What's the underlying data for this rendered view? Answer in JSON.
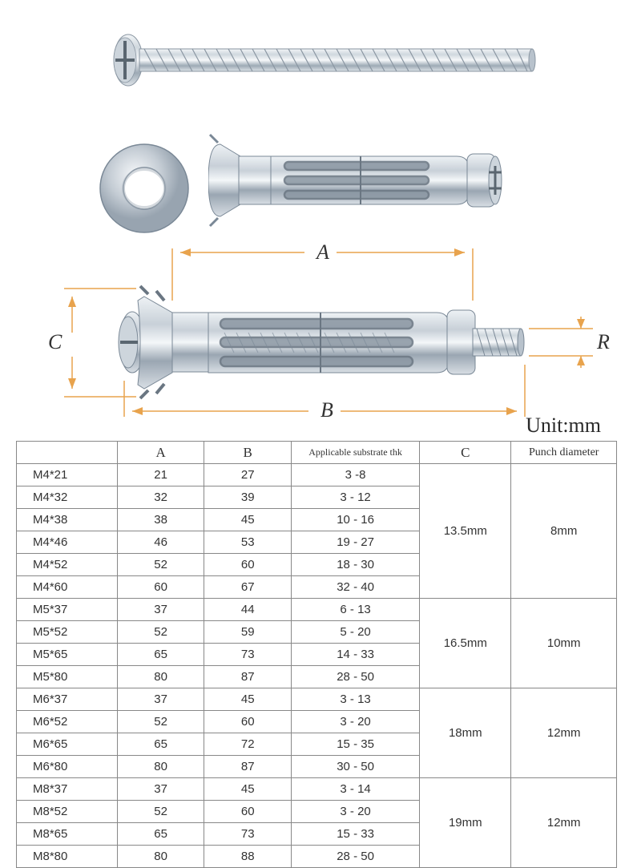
{
  "diagram": {
    "labels": {
      "A": "A",
      "B": "B",
      "C": "C",
      "R": "R"
    },
    "unit": "Unit:mm",
    "colors": {
      "dim": "#e8a34d",
      "metal_light": "#e8ecef",
      "metal_mid": "#b8c2cc",
      "metal_dark": "#7a8896"
    }
  },
  "table": {
    "headers": {
      "model": "",
      "A": "A",
      "B": "B",
      "thk": "Applicable substrate thk",
      "C": "C",
      "punch": "Punch diameter"
    },
    "groups": [
      {
        "C": "13.5mm",
        "punch": "8mm",
        "rows": [
          {
            "model": "M4*21",
            "A": "21",
            "B": "27",
            "thk": "3 -8"
          },
          {
            "model": "M4*32",
            "A": "32",
            "B": "39",
            "thk": "3 - 12"
          },
          {
            "model": "M4*38",
            "A": "38",
            "B": "45",
            "thk": "10 - 16"
          },
          {
            "model": "M4*46",
            "A": "46",
            "B": "53",
            "thk": "19 - 27"
          },
          {
            "model": "M4*52",
            "A": "52",
            "B": "60",
            "thk": "18 - 30"
          },
          {
            "model": "M4*60",
            "A": "60",
            "B": "67",
            "thk": "32 - 40"
          }
        ]
      },
      {
        "C": "16.5mm",
        "punch": "10mm",
        "rows": [
          {
            "model": "M5*37",
            "A": "37",
            "B": "44",
            "thk": "6 - 13"
          },
          {
            "model": "M5*52",
            "A": "52",
            "B": "59",
            "thk": "5 - 20"
          },
          {
            "model": "M5*65",
            "A": "65",
            "B": "73",
            "thk": "14 - 33"
          },
          {
            "model": "M5*80",
            "A": "80",
            "B": "87",
            "thk": "28 - 50"
          }
        ]
      },
      {
        "C": "18mm",
        "punch": "12mm",
        "rows": [
          {
            "model": "M6*37",
            "A": "37",
            "B": "45",
            "thk": "3 - 13"
          },
          {
            "model": "M6*52",
            "A": "52",
            "B": "60",
            "thk": "3 - 20"
          },
          {
            "model": "M6*65",
            "A": "65",
            "B": "72",
            "thk": "15 - 35"
          },
          {
            "model": "M6*80",
            "A": "80",
            "B": "87",
            "thk": "30 - 50"
          }
        ]
      },
      {
        "C": "19mm",
        "punch": "12mm",
        "rows": [
          {
            "model": "M8*37",
            "A": "37",
            "B": "45",
            "thk": "3 - 14"
          },
          {
            "model": "M8*52",
            "A": "52",
            "B": "60",
            "thk": "3 - 20"
          },
          {
            "model": "M8*65",
            "A": "65",
            "B": "73",
            "thk": "15 - 33"
          },
          {
            "model": "M8*80",
            "A": "80",
            "B": "88",
            "thk": "28 - 50"
          }
        ]
      }
    ]
  }
}
